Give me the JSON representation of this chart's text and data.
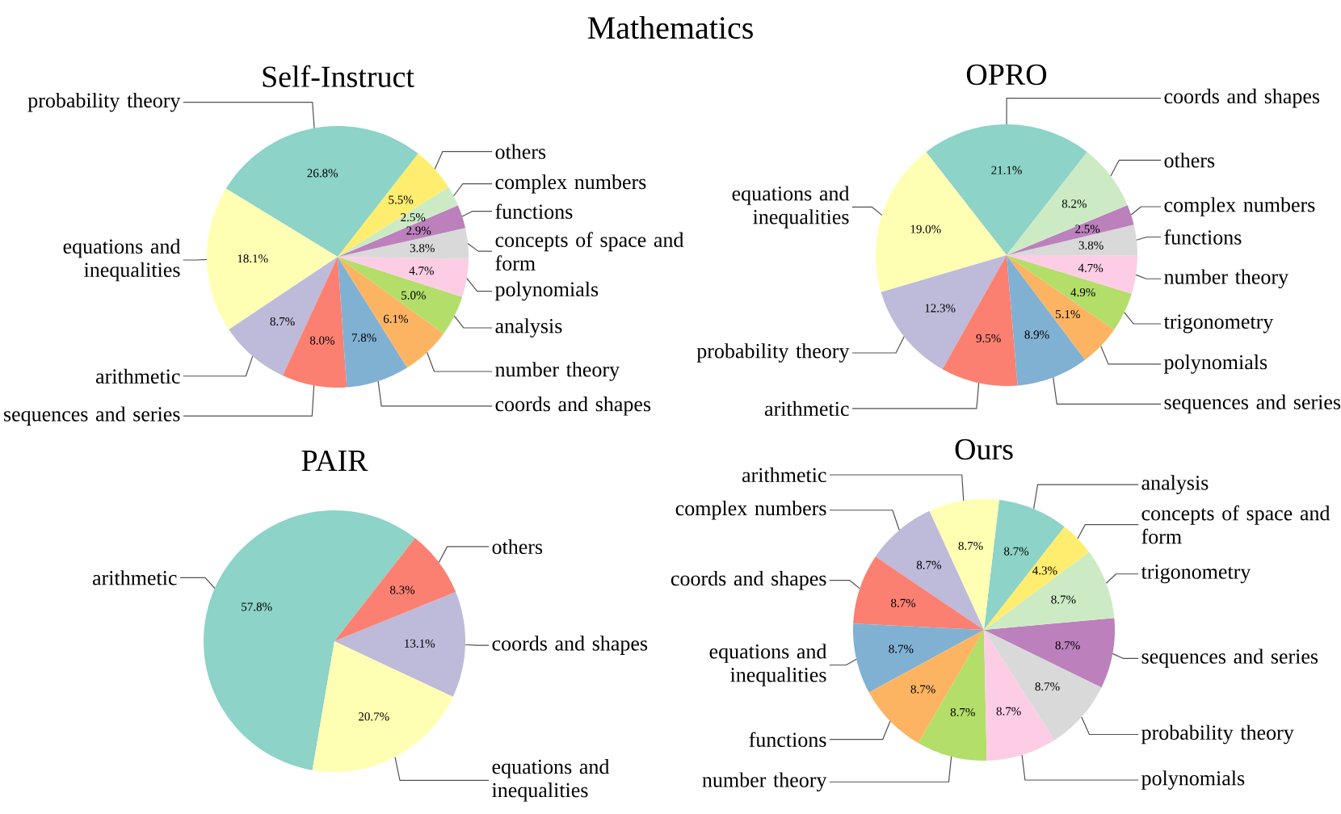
{
  "chart_data": [
    {
      "type": "other",
      "title": "Mathematics"
    },
    {
      "type": "pie",
      "title": "Self-Instruct",
      "categories": [
        "probability theory",
        "equations and inequalities",
        "arithmetic",
        "sequences and series",
        "coords and shapes",
        "number theory",
        "analysis",
        "polynomials",
        "concepts of space and form",
        "functions",
        "complex numbers",
        "others"
      ],
      "values": [
        26.8,
        18.1,
        8.7,
        8.0,
        7.8,
        6.1,
        5.0,
        4.7,
        3.8,
        2.9,
        2.5,
        5.5
      ],
      "value_labels": [
        "26.8%",
        "18.1%",
        "8.7%",
        "8.0%",
        "7.8%",
        "6.1%",
        "5.0%",
        "4.7%",
        "3.8%",
        "2.9%",
        "2.5%",
        "5.5%"
      ],
      "colors": [
        "#8dd3c7",
        "#ffffb3",
        "#bebada",
        "#fb8072",
        "#80b1d3",
        "#fdb462",
        "#b3de69",
        "#fccde5",
        "#d9d9d9",
        "#bc80bd",
        "#ccebc5",
        "#ffed6f"
      ]
    },
    {
      "type": "pie",
      "title": "OPRO",
      "categories": [
        "coords and shapes",
        "equations and inequalities",
        "probability theory",
        "arithmetic",
        "sequences and series",
        "polynomials",
        "trigonometry",
        "number theory",
        "functions",
        "complex numbers",
        "others"
      ],
      "values": [
        21.1,
        19.0,
        12.3,
        9.5,
        8.9,
        5.1,
        4.9,
        4.7,
        3.8,
        2.5,
        8.2
      ],
      "value_labels": [
        "21.1%",
        "19.0%",
        "12.3%",
        "9.5%",
        "8.9%",
        "5.1%",
        "4.9%",
        "4.7%",
        "3.8%",
        "2.5%",
        "8.2%"
      ],
      "colors": [
        "#8dd3c7",
        "#ffffb3",
        "#bebada",
        "#fb8072",
        "#80b1d3",
        "#fdb462",
        "#b3de69",
        "#fccde5",
        "#d9d9d9",
        "#bc80bd",
        "#ccebc5"
      ]
    },
    {
      "type": "pie",
      "title": "PAIR",
      "categories": [
        "arithmetic",
        "equations and inequalities",
        "coords and shapes",
        "others"
      ],
      "values": [
        57.8,
        20.7,
        13.1,
        8.3
      ],
      "value_labels": [
        "57.8%",
        "20.7%",
        "13.1%",
        "8.3%"
      ],
      "colors": [
        "#8dd3c7",
        "#ffffb3",
        "#bebada",
        "#fb8072"
      ]
    },
    {
      "type": "pie",
      "title": "Ours",
      "categories": [
        "analysis",
        "arithmetic",
        "complex numbers",
        "coords and shapes",
        "equations and inequalities",
        "functions",
        "number theory",
        "polynomials",
        "probability theory",
        "sequences and series",
        "trigonometry",
        "concepts of space and form"
      ],
      "values": [
        8.7,
        8.7,
        8.7,
        8.7,
        8.7,
        8.7,
        8.7,
        8.7,
        8.7,
        8.7,
        8.7,
        4.3
      ],
      "value_labels": [
        "8.7%",
        "8.7%",
        "8.7%",
        "8.7%",
        "8.7%",
        "8.7%",
        "8.7%",
        "8.7%",
        "8.7%",
        "8.7%",
        "8.7%",
        "4.3%"
      ],
      "colors": [
        "#8dd3c7",
        "#ffffb3",
        "#bebada",
        "#fb8072",
        "#80b1d3",
        "#fdb462",
        "#b3de69",
        "#fccde5",
        "#d9d9d9",
        "#bc80bd",
        "#ccebc5",
        "#ffed6f"
      ]
    }
  ]
}
